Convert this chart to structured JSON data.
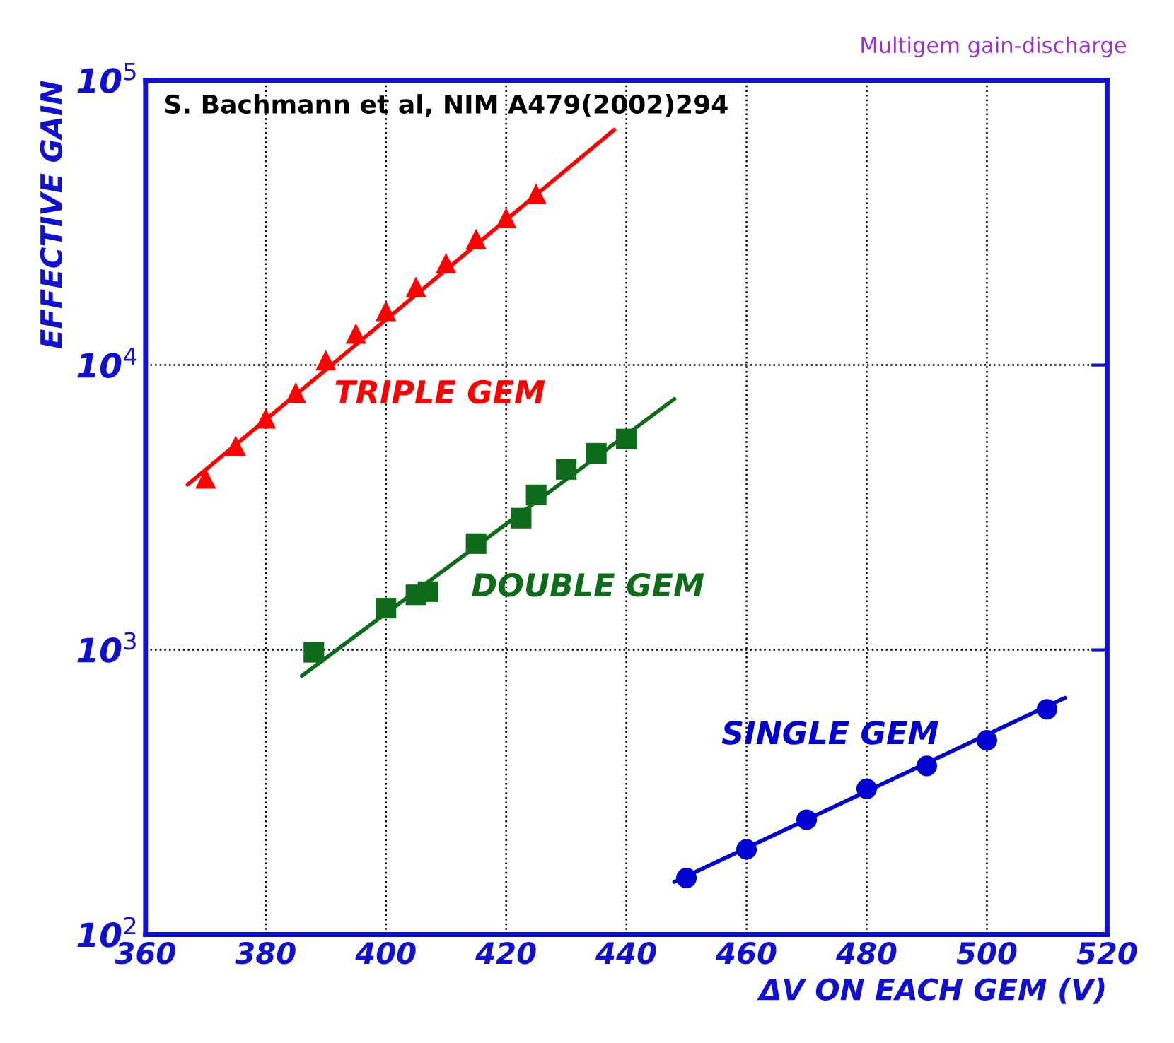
{
  "chart_data": {
    "type": "scatter",
    "xlabel": "ΔV ON EACH GEM (V)",
    "ylabel": "EFFECTIVE GAIN",
    "log": "y",
    "grid": true,
    "legend": false,
    "line_style": "solid",
    "xlim": [
      360,
      520
    ],
    "xticks": [
      360,
      380,
      400,
      420,
      440,
      460,
      480,
      500,
      520
    ],
    "ylim": [
      100,
      100000
    ],
    "yticks": [
      {
        "value": 100,
        "label": "10$^{2}$"
      },
      {
        "value": 1000,
        "label": "10$^{3}$"
      },
      {
        "value": 10000,
        "label": "10$^{4}$"
      },
      {
        "value": 100000,
        "label": "10$^{5}$"
      }
    ],
    "annotations": [
      "Multigem gain-discharge",
      "S. Bachmann et al, NIM A479(2002)294"
    ],
    "series": [
      {
        "name": "TRIPLE GEM",
        "marker": "triangle",
        "color": "#ff0000",
        "x": [
          370,
          375,
          380,
          385,
          390,
          395,
          400,
          405,
          410,
          415,
          420,
          425
        ],
        "values": [
          4000,
          5200,
          6500,
          8000,
          10400,
          12900,
          15500,
          18800,
          22800,
          27700,
          32900,
          40000
        ]
      },
      {
        "type": "line",
        "marker": "none",
        "color": "#ff0000",
        "x": [
          367,
          438
        ],
        "values": [
          3800,
          67000
        ]
      },
      {
        "name": "DOUBLE GEM",
        "marker": "square",
        "color": "#0d6b1a",
        "x": [
          388,
          400,
          405,
          407,
          415,
          422.5,
          425,
          430,
          435,
          440
        ],
        "values": [
          980,
          1400,
          1560,
          1600,
          2360,
          2900,
          3500,
          4300,
          4900,
          5500
        ]
      },
      {
        "type": "line",
        "marker": "none",
        "color": "#0d6b1a",
        "x": [
          386,
          448
        ],
        "values": [
          810,
          7600
        ]
      },
      {
        "name": "SINGLE GEM",
        "marker": "circle",
        "color": "#0000d0",
        "x": [
          450,
          460,
          470,
          480,
          490,
          500,
          510
        ],
        "values": [
          158,
          199,
          253,
          325,
          391,
          481,
          618
        ]
      },
      {
        "type": "line",
        "marker": "none",
        "color": "#0000d0",
        "x": [
          448,
          513
        ],
        "values": [
          153,
          678
        ]
      }
    ]
  }
}
